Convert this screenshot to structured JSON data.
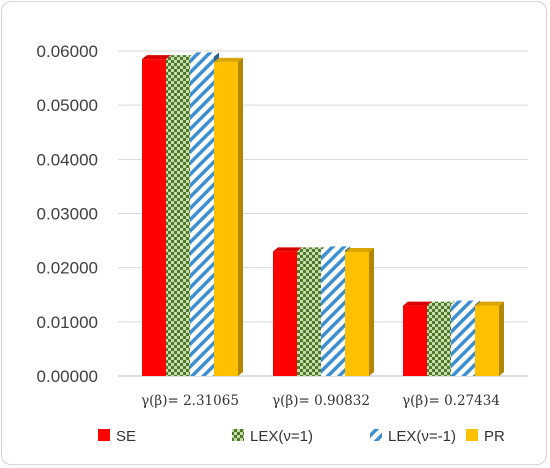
{
  "chart_data": {
    "type": "bar",
    "categories": [
      "γ(β)=  2.31065",
      "γ(β)= 0.90832",
      "γ(β)=  0.27434"
    ],
    "series": [
      {
        "name": "SE",
        "values": [
          0.0585,
          0.023,
          0.013
        ],
        "color": "#ff0000",
        "pattern": "solid"
      },
      {
        "name": "LEX(ν=1)",
        "values": [
          0.0585,
          0.023,
          0.013
        ],
        "color": "#4e7a27",
        "pattern": "checker"
      },
      {
        "name": "LEX(ν=-1)",
        "values": [
          0.059,
          0.0232,
          0.0132
        ],
        "color": "#3d8fd1",
        "pattern": "diagonal"
      },
      {
        "name": "PR",
        "values": [
          0.058,
          0.0229,
          0.013
        ],
        "color": "#ffc000",
        "pattern": "solid"
      }
    ],
    "ylim": [
      0,
      0.06
    ],
    "yticks": [
      "0.00000",
      "0.01000",
      "0.02000",
      "0.03000",
      "0.04000",
      "0.05000",
      "0.06000"
    ],
    "title": "",
    "xlabel": "",
    "ylabel": "",
    "grid": true,
    "legend_position": "bottom"
  }
}
